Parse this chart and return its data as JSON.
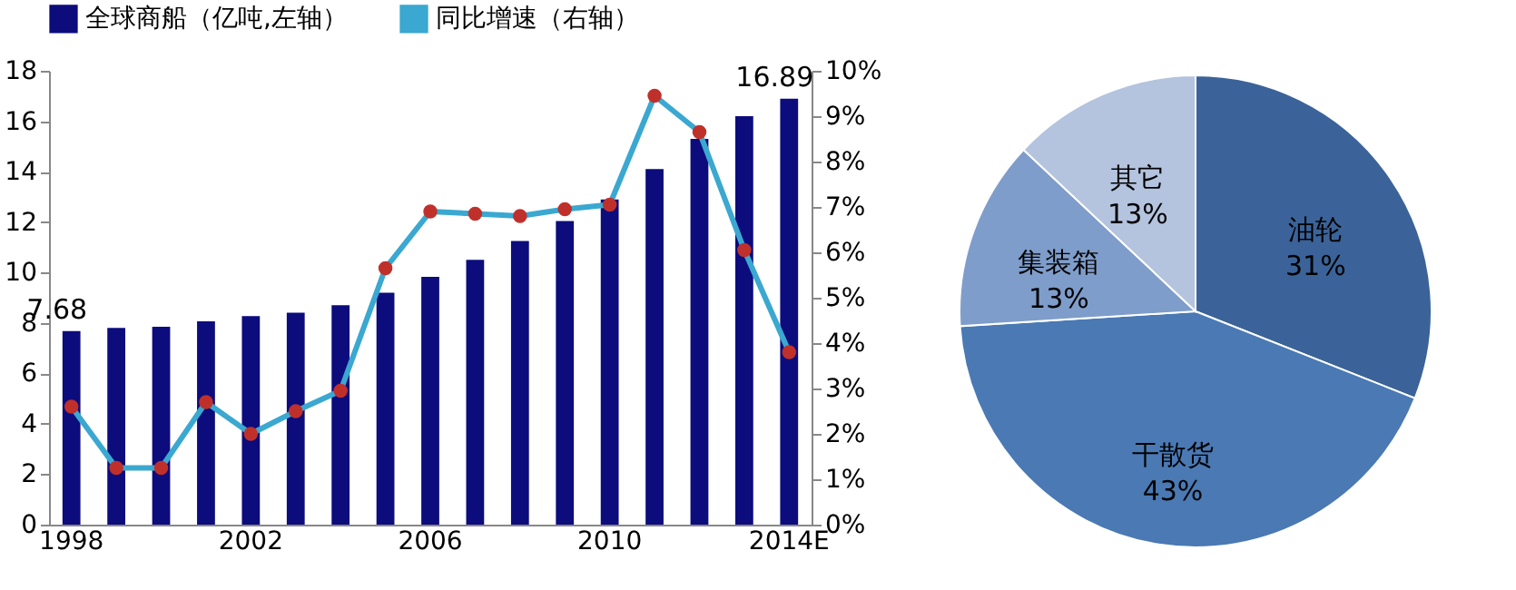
{
  "chart_data": [
    {
      "type": "bar",
      "categories": [
        "1998",
        null,
        null,
        null,
        "2002",
        null,
        null,
        null,
        "2006",
        null,
        null,
        null,
        "2010",
        null,
        null,
        null,
        "2014E"
      ],
      "series": [
        {
          "name": "全球商船（亿吨,左轴）",
          "type": "bar",
          "color": "#0c0c7c",
          "values": [
            7.68,
            7.8,
            7.85,
            8.06,
            8.27,
            8.41,
            8.7,
            9.2,
            9.83,
            10.5,
            11.25,
            12.04,
            12.9,
            14.1,
            15.3,
            16.2,
            16.89
          ],
          "value_labels": [
            "7.68",
            null,
            null,
            null,
            null,
            null,
            null,
            null,
            null,
            null,
            null,
            null,
            null,
            null,
            null,
            null,
            "16.89"
          ]
        },
        {
          "name": "同比增速（右轴）",
          "type": "line",
          "axis": "y2",
          "color": "#3aa8d0",
          "marker": "circle",
          "values": [
            2.6,
            1.25,
            1.25,
            2.7,
            2.0,
            2.5,
            2.95,
            5.65,
            6.9,
            6.85,
            6.8,
            6.95,
            7.05,
            9.45,
            8.65,
            6.05,
            3.8
          ]
        }
      ],
      "ylim": [
        0,
        18
      ],
      "yticks": [
        0,
        2,
        4,
        6,
        8,
        10,
        12,
        14,
        16,
        18
      ],
      "y2lim": [
        0,
        10
      ],
      "y2ticks": [
        {
          "value": 0,
          "label": "0%"
        },
        {
          "value": 1,
          "label": "1%"
        },
        {
          "value": 2,
          "label": "2%"
        },
        {
          "value": 3,
          "label": "3%"
        },
        {
          "value": 4,
          "label": "4%"
        },
        {
          "value": 5,
          "label": "5%"
        },
        {
          "value": 6,
          "label": "6%"
        },
        {
          "value": 7,
          "label": "7%"
        },
        {
          "value": 8,
          "label": "8%"
        },
        {
          "value": 9,
          "label": "9%"
        },
        {
          "value": 10,
          "label": "10%"
        }
      ],
      "grid": false,
      "legend": "top"
    },
    {
      "type": "pie",
      "categories": [
        "油轮",
        "干散货",
        "集装箱",
        "其它"
      ],
      "values": [
        31,
        43,
        13,
        13
      ],
      "value_labels": [
        "31%",
        "43%",
        "13%",
        "13%"
      ],
      "colors": [
        "#3b6399",
        "#4a79b4",
        "#7f9dca",
        "#b4c3de"
      ],
      "legend": false
    }
  ]
}
